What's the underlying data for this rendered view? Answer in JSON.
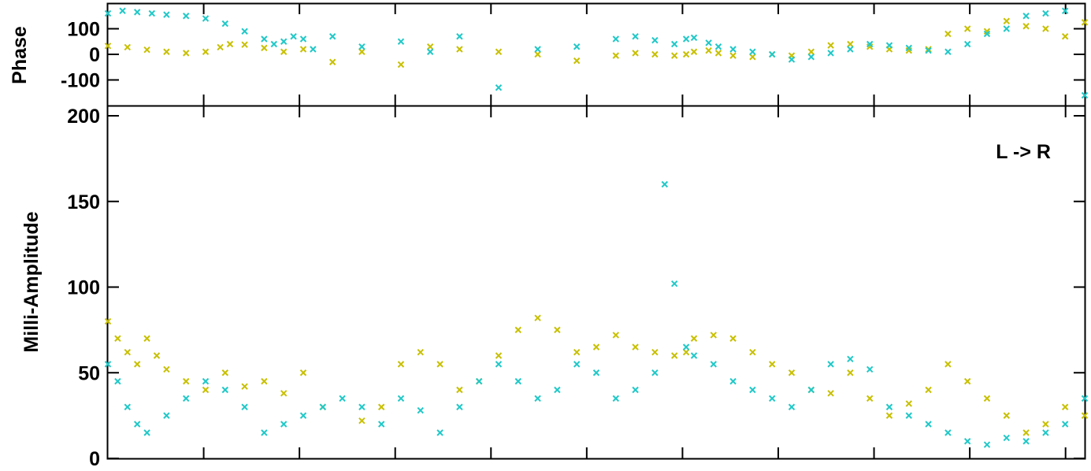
{
  "chart_data": [
    {
      "type": "scatter",
      "panel": "phase",
      "ylabel": "Phase",
      "ylim": [
        -200,
        200
      ],
      "xlim": [
        0,
        1000
      ],
      "y_ticks": [
        100,
        0,
        -100
      ],
      "y_tick_labels": [
        "100",
        "0",
        "-100"
      ],
      "x_tick_count": 10,
      "grid": false,
      "marker": "x",
      "series": [
        {
          "color": "#c8c000",
          "x": [
            0,
            20,
            40,
            60,
            80,
            100,
            115,
            125,
            140,
            160,
            180,
            200,
            230,
            260,
            300,
            330,
            360,
            400,
            440,
            480,
            520,
            540,
            560,
            580,
            592,
            600,
            615,
            625,
            640,
            660,
            680,
            700,
            720,
            740,
            760,
            780,
            800,
            820,
            840,
            860,
            880,
            900,
            920,
            940,
            960,
            980,
            1000
          ],
          "y": [
            33,
            28,
            18,
            10,
            5,
            10,
            28,
            40,
            38,
            25,
            10,
            20,
            -30,
            10,
            -40,
            30,
            20,
            10,
            0,
            -25,
            -5,
            5,
            0,
            -5,
            0,
            10,
            15,
            5,
            -5,
            -10,
            0,
            -5,
            10,
            35,
            40,
            30,
            20,
            15,
            20,
            80,
            100,
            90,
            130,
            110,
            100,
            70,
            125
          ]
        },
        {
          "color": "#22c8c8",
          "x": [
            0,
            15,
            30,
            45,
            60,
            80,
            100,
            120,
            140,
            160,
            170,
            180,
            190,
            200,
            210,
            230,
            260,
            300,
            330,
            360,
            400,
            440,
            480,
            520,
            540,
            560,
            580,
            592,
            600,
            615,
            625,
            640,
            660,
            680,
            700,
            720,
            740,
            760,
            780,
            800,
            820,
            840,
            860,
            880,
            900,
            920,
            940,
            960,
            980,
            1000
          ],
          "y": [
            160,
            170,
            165,
            160,
            155,
            150,
            140,
            120,
            90,
            60,
            40,
            50,
            70,
            60,
            20,
            70,
            30,
            50,
            10,
            70,
            -130,
            20,
            30,
            60,
            70,
            55,
            40,
            60,
            65,
            45,
            30,
            20,
            10,
            0,
            -20,
            -10,
            5,
            20,
            40,
            35,
            25,
            15,
            10,
            40,
            80,
            100,
            150,
            160,
            170,
            -160
          ]
        }
      ]
    },
    {
      "type": "scatter",
      "panel": "amplitude",
      "ylabel": "Milli-Amplitude",
      "ylim": [
        0,
        200
      ],
      "xlim": [
        0,
        1000
      ],
      "y_ticks": [
        200,
        150,
        100,
        50,
        0
      ],
      "y_tick_labels": [
        "200",
        "150",
        "100",
        "50",
        "0"
      ],
      "x_tick_count": 10,
      "grid": false,
      "marker": "x",
      "annotation": "L -> R",
      "series": [
        {
          "color": "#c8c000",
          "x": [
            0,
            10,
            20,
            30,
            40,
            50,
            60,
            80,
            100,
            120,
            140,
            160,
            180,
            200,
            220,
            260,
            280,
            300,
            320,
            340,
            360,
            380,
            400,
            420,
            440,
            460,
            480,
            500,
            520,
            540,
            560,
            580,
            592,
            600,
            620,
            640,
            660,
            680,
            700,
            720,
            740,
            760,
            780,
            800,
            820,
            840,
            860,
            880,
            900,
            920,
            940,
            960,
            980,
            1000
          ],
          "y": [
            80,
            70,
            62,
            55,
            70,
            60,
            52,
            45,
            40,
            50,
            42,
            45,
            38,
            50,
            30,
            22,
            30,
            55,
            62,
            55,
            40,
            45,
            60,
            75,
            82,
            75,
            62,
            65,
            72,
            65,
            62,
            60,
            62,
            70,
            72,
            70,
            62,
            55,
            50,
            40,
            38,
            50,
            35,
            25,
            32,
            40,
            55,
            45,
            35,
            25,
            15,
            20,
            30,
            25
          ]
        },
        {
          "color": "#22c8c8",
          "x": [
            0,
            10,
            20,
            30,
            40,
            60,
            80,
            100,
            120,
            140,
            160,
            180,
            200,
            220,
            240,
            260,
            280,
            300,
            320,
            340,
            360,
            380,
            400,
            420,
            440,
            460,
            480,
            500,
            520,
            540,
            560,
            570,
            580,
            592,
            600,
            620,
            640,
            660,
            680,
            700,
            720,
            740,
            760,
            780,
            800,
            820,
            840,
            860,
            880,
            900,
            920,
            940,
            960,
            980,
            1000
          ],
          "y": [
            55,
            45,
            30,
            20,
            15,
            25,
            35,
            45,
            40,
            30,
            15,
            20,
            25,
            30,
            35,
            30,
            20,
            35,
            28,
            15,
            30,
            45,
            55,
            45,
            35,
            40,
            55,
            50,
            35,
            40,
            50,
            160,
            102,
            65,
            60,
            55,
            45,
            40,
            35,
            30,
            40,
            55,
            58,
            52,
            30,
            25,
            20,
            15,
            10,
            8,
            12,
            10,
            15,
            20,
            35
          ]
        }
      ]
    }
  ]
}
